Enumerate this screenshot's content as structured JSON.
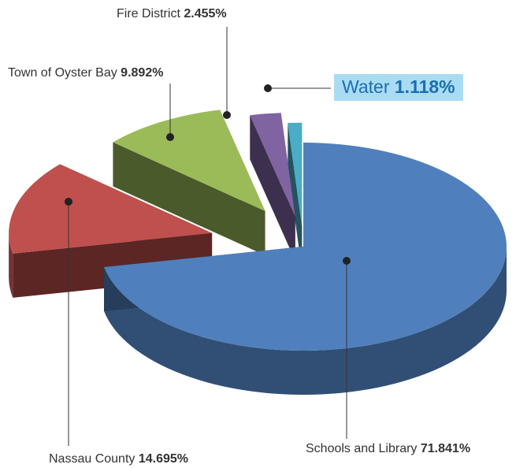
{
  "chart_data": {
    "type": "pie",
    "style": "3d-exploded",
    "slices": [
      {
        "label": "Schools and Library",
        "value": 71.841,
        "display": "71.841%",
        "color": "#4f80bd"
      },
      {
        "label": "Nassau County",
        "value": 14.695,
        "display": "14.695%",
        "color": "#c0504d"
      },
      {
        "label": "Town of Oyster Bay",
        "value": 9.892,
        "display": "9.892%",
        "color": "#9bbb59"
      },
      {
        "label": "Fire District",
        "value": 2.455,
        "display": "2.455%",
        "color": "#8064a2"
      },
      {
        "label": "Water",
        "value": 1.118,
        "display": "1.118%",
        "color": "#4bacc6",
        "highlighted": true
      }
    ]
  }
}
